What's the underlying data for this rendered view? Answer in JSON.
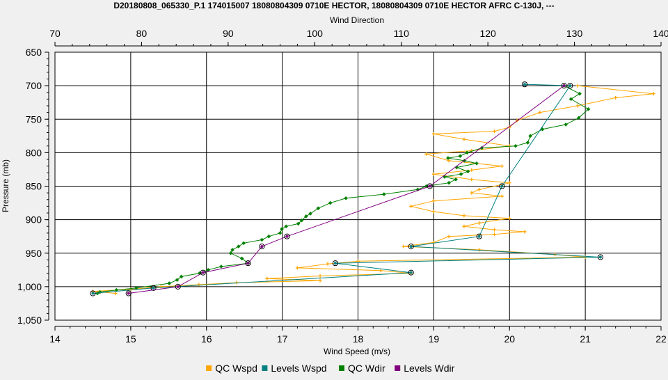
{
  "title": "D20180808_065330_P.1 174015007 18080804309 0710E HECTOR, 18080804309 0710E HECTOR AFRC C-130J, ---",
  "colors": {
    "qc_wspd": "#FFA500",
    "levels_wspd": "#008080",
    "qc_wdir": "#008000",
    "levels_wdir": "#800080",
    "grid": "#000000",
    "background": "#f0f0f0",
    "plot_bg": "#ffffff"
  },
  "chart_data": {
    "type": "line",
    "title": "D20180808_065330_P.1 174015007 18080804309 0710E HECTOR, 18080804309 0710E HECTOR AFRC C-130J, ---",
    "xlabel": "Wind Speed (m/s)",
    "x2label": "Wind Direction",
    "ylabel": "Pressure (mb)",
    "xlim": [
      14,
      22
    ],
    "x2lim": [
      70,
      140
    ],
    "ylim": [
      650,
      1050
    ],
    "y_inverted": true,
    "grid": true,
    "legend_position": "bottom",
    "x_ticks": [
      "14",
      "15",
      "16",
      "17",
      "18",
      "19",
      "20",
      "21",
      "22"
    ],
    "x2_ticks": [
      "70",
      "80",
      "90",
      "100",
      "110",
      "120",
      "130",
      "140"
    ],
    "y_ticks": [
      "650",
      "700",
      "750",
      "800",
      "850",
      "900",
      "950",
      "1,000",
      "1,050"
    ],
    "series": [
      {
        "name": "QC Wspd",
        "axis": "bottom",
        "marker": "plus",
        "points": [
          [
            20.9,
            700
          ],
          [
            21.9,
            712
          ],
          [
            21.4,
            718
          ],
          [
            20.9,
            730
          ],
          [
            20.4,
            740
          ],
          [
            20.1,
            752
          ],
          [
            20.0,
            762
          ],
          [
            19.8,
            768
          ],
          [
            19.0,
            772
          ],
          [
            19.4,
            780
          ],
          [
            20.0,
            790
          ],
          [
            19.5,
            797
          ],
          [
            18.9,
            802
          ],
          [
            19.2,
            812
          ],
          [
            19.9,
            820
          ],
          [
            19.5,
            826
          ],
          [
            19.0,
            832
          ],
          [
            19.5,
            840
          ],
          [
            20.0,
            845
          ],
          [
            19.6,
            855
          ],
          [
            19.5,
            860
          ],
          [
            19.9,
            865
          ],
          [
            19.0,
            872
          ],
          [
            18.7,
            880
          ],
          [
            19.0,
            888
          ],
          [
            19.4,
            894
          ],
          [
            20.0,
            898
          ],
          [
            19.6,
            905
          ],
          [
            19.4,
            910
          ],
          [
            19.8,
            915
          ],
          [
            20.2,
            918
          ],
          [
            19.8,
            922
          ],
          [
            19.2,
            925
          ],
          [
            19.0,
            934
          ],
          [
            18.6,
            940
          ],
          [
            19.6,
            945
          ],
          [
            20.6,
            952
          ],
          [
            21.0,
            956
          ],
          [
            18.0,
            962
          ],
          [
            17.6,
            966
          ],
          [
            17.2,
            972
          ],
          [
            18.3,
            976
          ],
          [
            18.7,
            980
          ],
          [
            17.5,
            984
          ],
          [
            16.8,
            988
          ],
          [
            17.5,
            991
          ],
          [
            16.4,
            994
          ],
          [
            15.9,
            997
          ],
          [
            15.4,
            1000
          ],
          [
            15.0,
            1004
          ],
          [
            14.5,
            1007
          ],
          [
            14.8,
            1010
          ]
        ]
      },
      {
        "name": "Levels Wspd",
        "axis": "bottom",
        "marker": "circle",
        "points": [
          [
            20.2,
            698
          ],
          [
            20.8,
            700
          ],
          [
            19.9,
            850
          ],
          [
            19.6,
            925
          ],
          [
            18.7,
            940
          ],
          [
            21.2,
            956
          ],
          [
            17.7,
            965
          ],
          [
            18.7,
            979
          ],
          [
            15.3,
            1002
          ],
          [
            14.5,
            1010
          ]
        ]
      },
      {
        "name": "QC Wdir",
        "axis": "top",
        "marker": "diamond",
        "points": [
          [
            128.8,
            700
          ],
          [
            130.6,
            712
          ],
          [
            129.6,
            720
          ],
          [
            131.6,
            735
          ],
          [
            130.5,
            748
          ],
          [
            129.0,
            758
          ],
          [
            126.3,
            765
          ],
          [
            124.9,
            775
          ],
          [
            124.6,
            785
          ],
          [
            123.2,
            790
          ],
          [
            119.3,
            793
          ],
          [
            117.6,
            800
          ],
          [
            116.8,
            805
          ],
          [
            115.4,
            808
          ],
          [
            117.3,
            812
          ],
          [
            118.7,
            816
          ],
          [
            116.4,
            822
          ],
          [
            117.7,
            828
          ],
          [
            116.9,
            832
          ],
          [
            115.0,
            836
          ],
          [
            116.3,
            840
          ],
          [
            115.5,
            845
          ],
          [
            112.9,
            850
          ],
          [
            111.9,
            855
          ],
          [
            108.0,
            862
          ],
          [
            103.6,
            868
          ],
          [
            101.8,
            875
          ],
          [
            100.4,
            883
          ],
          [
            99.5,
            891
          ],
          [
            99.0,
            895
          ],
          [
            98.5,
            901
          ],
          [
            98.1,
            906
          ],
          [
            96.7,
            910
          ],
          [
            96.2,
            914
          ],
          [
            96.0,
            920
          ],
          [
            94.7,
            925
          ],
          [
            93.9,
            930
          ],
          [
            91.8,
            935
          ],
          [
            91.2,
            940
          ],
          [
            90.5,
            945
          ],
          [
            90.3,
            950
          ],
          [
            91.6,
            958
          ],
          [
            92.3,
            965
          ],
          [
            89.2,
            970
          ],
          [
            87.7,
            975
          ],
          [
            86.7,
            980
          ],
          [
            84.6,
            985
          ],
          [
            84.1,
            990
          ],
          [
            83.2,
            995
          ],
          [
            79.4,
            1002
          ],
          [
            77.1,
            1005
          ],
          [
            75.2,
            1008
          ],
          [
            74.9,
            1010
          ]
        ]
      },
      {
        "name": "Levels Wdir",
        "axis": "top",
        "marker": "circle",
        "points": [
          [
            128.8,
            700
          ],
          [
            113.3,
            850
          ],
          [
            96.8,
            925
          ],
          [
            93.9,
            940
          ],
          [
            92.3,
            965
          ],
          [
            87.1,
            979
          ],
          [
            84.2,
            1000
          ],
          [
            78.5,
            1010
          ]
        ]
      }
    ],
    "legend": [
      "QC Wspd",
      "Levels Wspd",
      "QC Wdir",
      "Levels Wdir"
    ]
  }
}
